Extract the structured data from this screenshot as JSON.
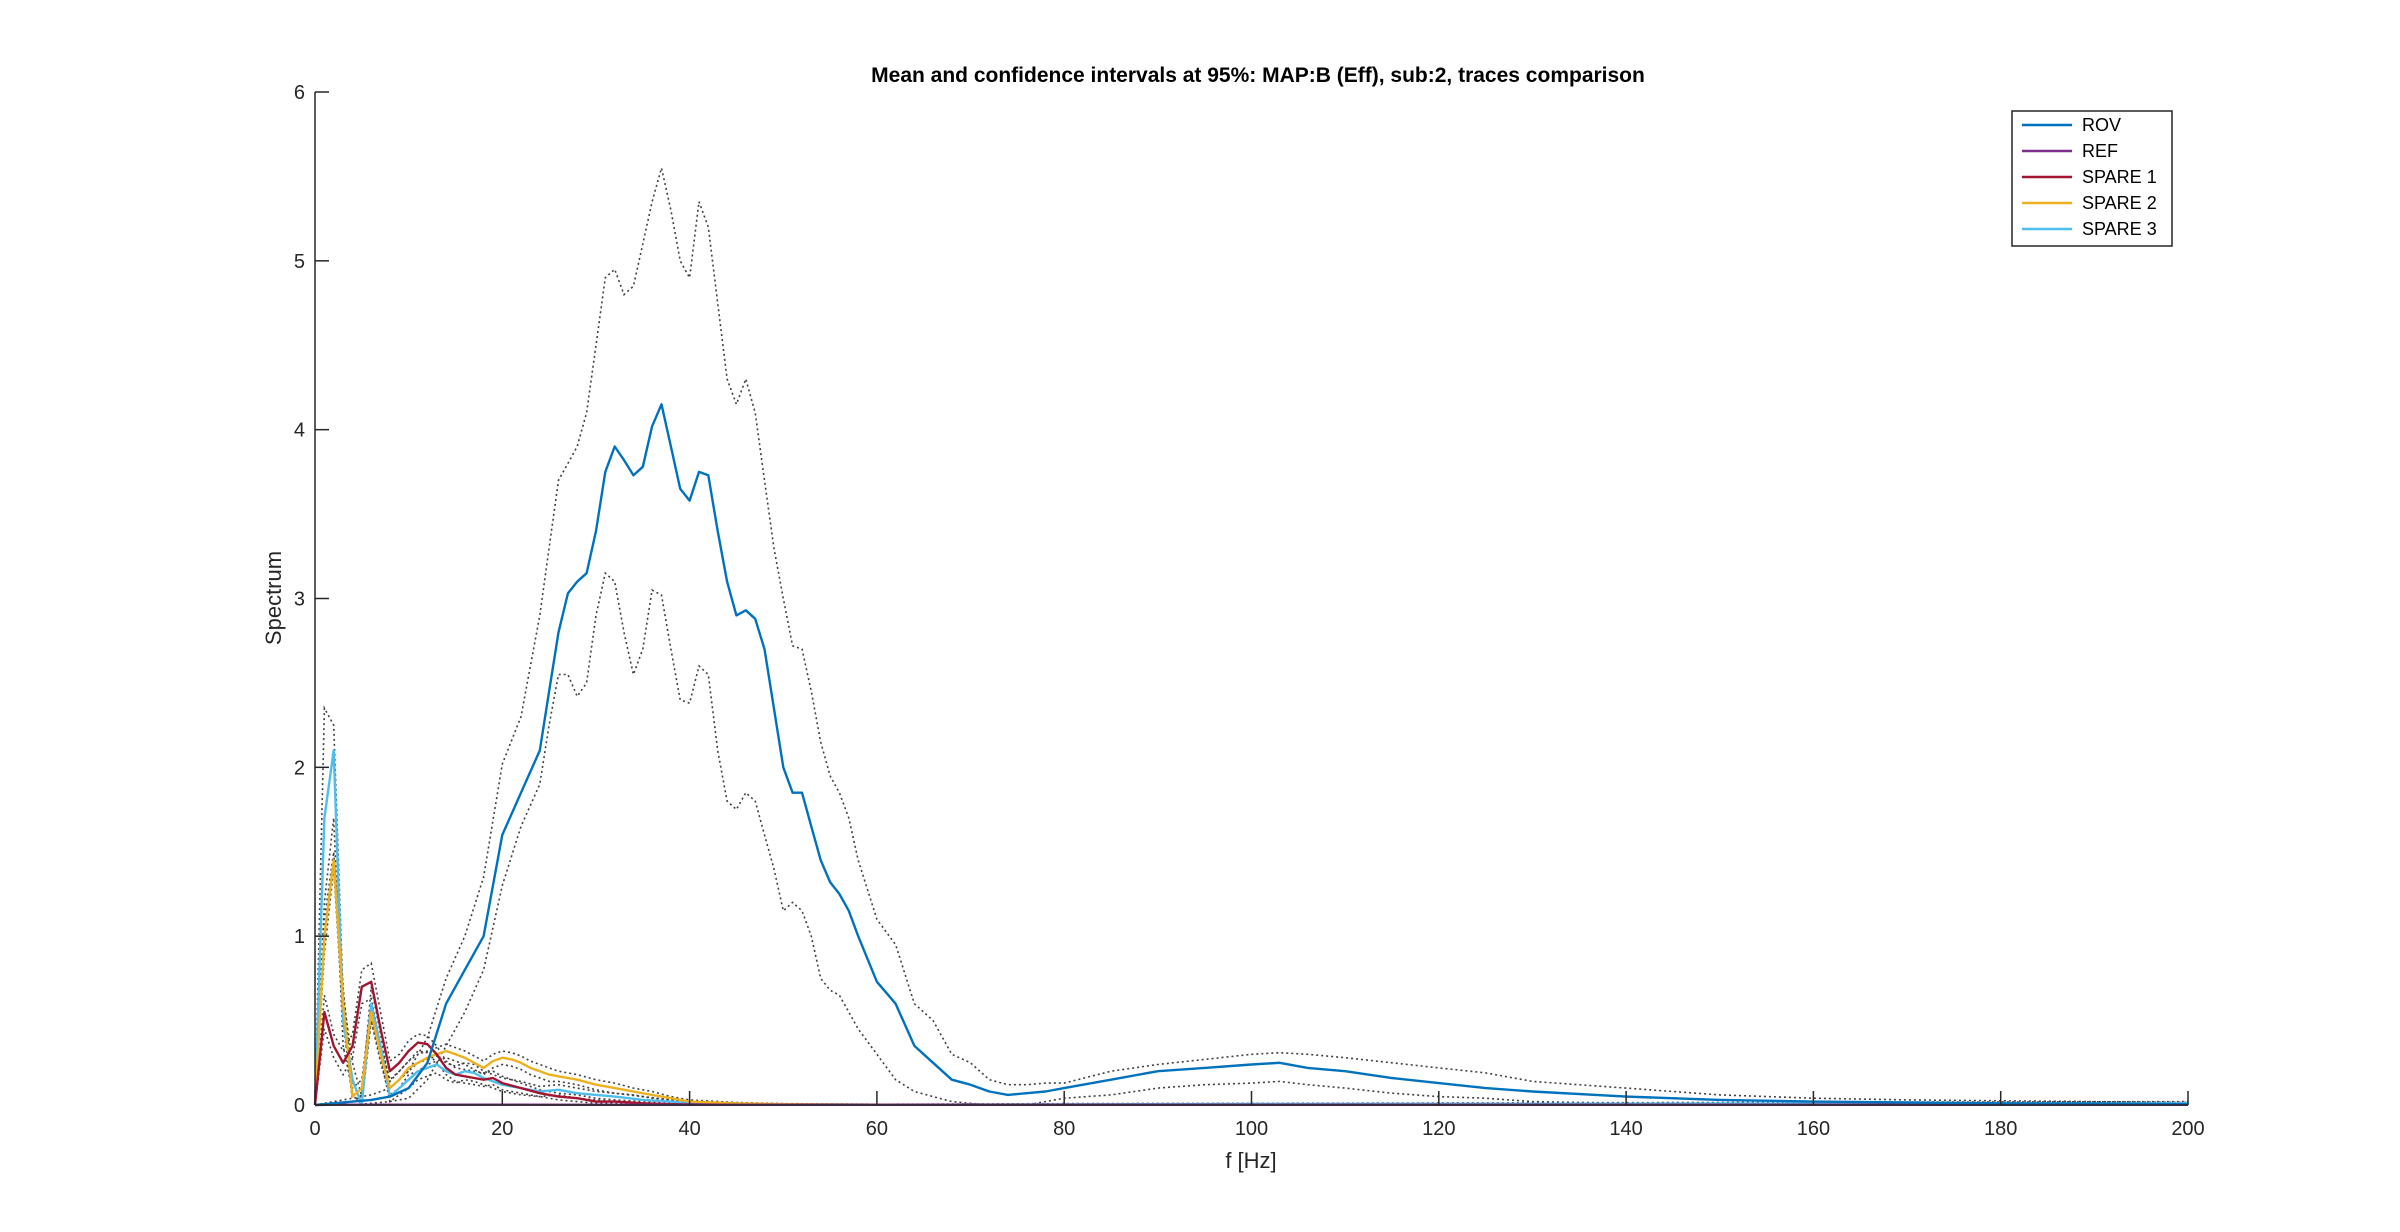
{
  "chart_data": {
    "type": "line",
    "title": "Mean and confidence intervals at 95%: MAP:B (Eff), sub:2, traces comparison",
    "xlabel": "f [Hz]",
    "ylabel": "Spectrum",
    "xlim": [
      0,
      200
    ],
    "ylim": [
      0,
      6
    ],
    "xticks": [
      "0",
      "20",
      "40",
      "60",
      "80",
      "100",
      "120",
      "140",
      "160",
      "180",
      "200"
    ],
    "yticks": [
      "0",
      "1",
      "2",
      "3",
      "4",
      "5",
      "6"
    ],
    "grid": false,
    "legend_position": "top-right",
    "ci_color": "#404040",
    "series": [
      {
        "name": "ROV",
        "color": "#0072BD",
        "x": [
          0,
          2,
          4,
          6,
          8,
          10,
          12,
          14,
          16,
          18,
          20,
          22,
          24,
          25,
          26,
          27,
          28,
          29,
          30,
          31,
          32,
          33,
          34,
          35,
          36,
          37,
          38,
          39,
          40,
          41,
          42,
          43,
          44,
          45,
          46,
          47,
          48,
          49,
          50,
          51,
          52,
          53,
          54,
          55,
          56,
          57,
          58,
          60,
          62,
          64,
          66,
          68,
          70,
          72,
          74,
          76,
          78,
          80,
          85,
          90,
          95,
          100,
          103,
          106,
          110,
          115,
          120,
          125,
          130,
          140,
          150,
          160,
          170,
          180,
          190,
          200
        ],
        "values": [
          0,
          0.01,
          0.02,
          0.03,
          0.05,
          0.1,
          0.25,
          0.6,
          0.8,
          1.0,
          1.6,
          1.85,
          2.1,
          2.45,
          2.8,
          3.03,
          3.1,
          3.15,
          3.4,
          3.75,
          3.9,
          3.82,
          3.73,
          3.78,
          4.02,
          4.15,
          3.9,
          3.65,
          3.58,
          3.75,
          3.73,
          3.4,
          3.1,
          2.9,
          2.93,
          2.88,
          2.7,
          2.35,
          2.0,
          1.85,
          1.85,
          1.65,
          1.45,
          1.32,
          1.25,
          1.15,
          1.0,
          0.73,
          0.6,
          0.35,
          0.25,
          0.15,
          0.12,
          0.08,
          0.06,
          0.07,
          0.08,
          0.1,
          0.15,
          0.2,
          0.22,
          0.24,
          0.25,
          0.22,
          0.2,
          0.16,
          0.13,
          0.1,
          0.08,
          0.05,
          0.03,
          0.02,
          0.015,
          0.01,
          0.008,
          0.005
        ],
        "ci_upper": [
          0,
          0.02,
          0.04,
          0.06,
          0.1,
          0.2,
          0.4,
          0.75,
          1.0,
          1.35,
          2.02,
          2.3,
          2.9,
          3.3,
          3.7,
          3.8,
          3.9,
          4.1,
          4.5,
          4.9,
          4.95,
          4.8,
          4.85,
          5.1,
          5.35,
          5.55,
          5.3,
          5.0,
          4.9,
          5.35,
          5.2,
          4.75,
          4.3,
          4.15,
          4.3,
          4.1,
          3.7,
          3.3,
          3.0,
          2.72,
          2.7,
          2.45,
          2.15,
          1.95,
          1.85,
          1.7,
          1.45,
          1.1,
          0.95,
          0.6,
          0.5,
          0.3,
          0.25,
          0.15,
          0.12,
          0.12,
          0.13,
          0.13,
          0.2,
          0.24,
          0.27,
          0.3,
          0.31,
          0.3,
          0.28,
          0.25,
          0.22,
          0.19,
          0.14,
          0.1,
          0.06,
          0.04,
          0.03,
          0.025,
          0.02,
          0.015
        ],
        "ci_lower": [
          0,
          0,
          0,
          0.01,
          0.02,
          0.04,
          0.15,
          0.35,
          0.55,
          0.8,
          1.3,
          1.65,
          1.9,
          2.25,
          2.55,
          2.55,
          2.42,
          2.5,
          2.9,
          3.15,
          3.1,
          2.8,
          2.55,
          2.7,
          3.05,
          3.02,
          2.7,
          2.4,
          2.38,
          2.6,
          2.55,
          2.1,
          1.8,
          1.75,
          1.85,
          1.8,
          1.6,
          1.4,
          1.15,
          1.2,
          1.15,
          1.0,
          0.75,
          0.68,
          0.65,
          0.55,
          0.45,
          0.3,
          0.15,
          0.08,
          0.05,
          0.02,
          0.01,
          0.0,
          0.0,
          0.0,
          0.02,
          0.04,
          0.06,
          0.1,
          0.12,
          0.13,
          0.14,
          0.12,
          0.1,
          0.07,
          0.05,
          0.04,
          0.02,
          0.01,
          0.005,
          0.002,
          0.001,
          0.001,
          0,
          0
        ]
      },
      {
        "name": "REF",
        "color": "#7E2F8E",
        "x": [
          0,
          2,
          4,
          6,
          8,
          10,
          20,
          40,
          60,
          80,
          100,
          120,
          140,
          160,
          180,
          200
        ],
        "values": [
          0,
          0.002,
          0.002,
          0.002,
          0.002,
          0.002,
          0.002,
          0.001,
          0.001,
          0.001,
          0.001,
          0.001,
          0.001,
          0.001,
          0.001,
          0.001
        ]
      },
      {
        "name": "SPARE 1",
        "color": "#A2142F",
        "x": [
          0,
          1,
          2,
          3,
          4,
          5,
          6,
          7,
          8,
          9,
          10,
          11,
          12,
          13,
          14,
          15,
          16,
          17,
          18,
          19,
          20,
          22,
          24,
          26,
          28,
          30,
          32,
          35,
          38,
          40,
          45,
          50,
          60,
          80,
          100,
          200
        ],
        "values": [
          0,
          0.55,
          0.35,
          0.25,
          0.35,
          0.7,
          0.73,
          0.45,
          0.2,
          0.25,
          0.32,
          0.37,
          0.36,
          0.3,
          0.22,
          0.18,
          0.17,
          0.16,
          0.15,
          0.16,
          0.13,
          0.1,
          0.07,
          0.05,
          0.04,
          0.02,
          0.02,
          0.01,
          0.005,
          0.003,
          0.001,
          0.001,
          0.001,
          0.001,
          0.001,
          0.001
        ],
        "ci_upper": [
          0,
          0.65,
          0.42,
          0.32,
          0.42,
          0.8,
          0.84,
          0.55,
          0.26,
          0.3,
          0.38,
          0.42,
          0.41,
          0.35,
          0.26,
          0.22,
          0.21,
          0.2,
          0.19,
          0.2,
          0.17,
          0.13,
          0.09,
          0.07,
          0.06,
          0.04,
          0.03,
          0.02,
          0.01,
          0.006,
          0.003,
          0.002,
          0.002,
          0.002,
          0.002,
          0.002
        ],
        "ci_lower": [
          0,
          0.45,
          0.28,
          0.18,
          0.28,
          0.6,
          0.63,
          0.35,
          0.14,
          0.2,
          0.26,
          0.32,
          0.31,
          0.25,
          0.18,
          0.14,
          0.13,
          0.12,
          0.11,
          0.12,
          0.09,
          0.07,
          0.05,
          0.03,
          0.02,
          0.01,
          0.01,
          0.005,
          0.002,
          0.001,
          0,
          0,
          0,
          0,
          0,
          0
        ]
      },
      {
        "name": "SPARE 2",
        "color": "#EDB120",
        "x": [
          0,
          1,
          2,
          3,
          4,
          5,
          6,
          7,
          8,
          9,
          10,
          11,
          12,
          13,
          14,
          15,
          16,
          17,
          18,
          19,
          20,
          21,
          22,
          23,
          24,
          25,
          26,
          28,
          30,
          32,
          34,
          36,
          38,
          40,
          45,
          50,
          60,
          80,
          100,
          200
        ],
        "values": [
          0,
          1.0,
          1.45,
          0.6,
          0.05,
          0.1,
          0.55,
          0.3,
          0.1,
          0.15,
          0.22,
          0.25,
          0.28,
          0.3,
          0.32,
          0.3,
          0.28,
          0.25,
          0.22,
          0.26,
          0.28,
          0.27,
          0.25,
          0.22,
          0.2,
          0.18,
          0.17,
          0.15,
          0.12,
          0.1,
          0.08,
          0.06,
          0.04,
          0.02,
          0.01,
          0.005,
          0.002,
          0.001,
          0.001,
          0.001
        ],
        "ci_upper": [
          0,
          1.1,
          1.5,
          0.7,
          0.1,
          0.15,
          0.6,
          0.35,
          0.15,
          0.2,
          0.26,
          0.3,
          0.32,
          0.34,
          0.36,
          0.34,
          0.32,
          0.29,
          0.26,
          0.3,
          0.32,
          0.31,
          0.29,
          0.26,
          0.24,
          0.22,
          0.2,
          0.18,
          0.15,
          0.13,
          0.1,
          0.08,
          0.05,
          0.03,
          0.015,
          0.008,
          0.004,
          0.002,
          0.002,
          0.002
        ],
        "ci_lower": [
          0,
          0.9,
          1.4,
          0.5,
          0.02,
          0.06,
          0.5,
          0.25,
          0.06,
          0.1,
          0.18,
          0.2,
          0.24,
          0.26,
          0.28,
          0.26,
          0.24,
          0.21,
          0.18,
          0.22,
          0.24,
          0.23,
          0.21,
          0.18,
          0.16,
          0.14,
          0.14,
          0.12,
          0.09,
          0.07,
          0.06,
          0.04,
          0.03,
          0.01,
          0.005,
          0.002,
          0.001,
          0,
          0,
          0
        ]
      },
      {
        "name": "SPARE 3",
        "color": "#4DBEEE",
        "x": [
          0,
          1,
          2,
          3,
          4,
          5,
          6,
          7,
          8,
          9,
          10,
          11,
          12,
          13,
          14,
          15,
          16,
          17,
          18,
          20,
          22,
          24,
          26,
          28,
          30,
          32,
          35,
          38,
          40,
          45,
          50,
          60,
          80,
          100,
          150,
          200
        ],
        "values": [
          0,
          1.7,
          2.1,
          0.5,
          0.15,
          0.0,
          0.6,
          0.35,
          0.05,
          0.1,
          0.15,
          0.2,
          0.22,
          0.24,
          0.2,
          0.18,
          0.2,
          0.19,
          0.16,
          0.12,
          0.1,
          0.08,
          0.09,
          0.07,
          0.06,
          0.05,
          0.03,
          0.02,
          0.01,
          0.005,
          0.003,
          0.002,
          0.004,
          0.006,
          0.008,
          0.01
        ],
        "ci_upper": [
          0,
          2.35,
          2.25,
          0.65,
          0.25,
          0.05,
          0.7,
          0.42,
          0.1,
          0.15,
          0.2,
          0.25,
          0.27,
          0.29,
          0.25,
          0.23,
          0.25,
          0.24,
          0.2,
          0.16,
          0.14,
          0.11,
          0.12,
          0.1,
          0.08,
          0.07,
          0.05,
          0.03,
          0.02,
          0.008,
          0.005,
          0.004,
          0.008,
          0.01,
          0.015,
          0.02
        ],
        "ci_lower": [
          0,
          1.2,
          1.7,
          0.35,
          0.08,
          0.0,
          0.5,
          0.28,
          0.02,
          0.06,
          0.1,
          0.15,
          0.17,
          0.19,
          0.15,
          0.13,
          0.15,
          0.14,
          0.12,
          0.08,
          0.06,
          0.05,
          0.06,
          0.04,
          0.03,
          0.02,
          0.01,
          0.005,
          0.002,
          0.001,
          0.001,
          0,
          0,
          0.001,
          0.002,
          0.003
        ]
      }
    ]
  }
}
